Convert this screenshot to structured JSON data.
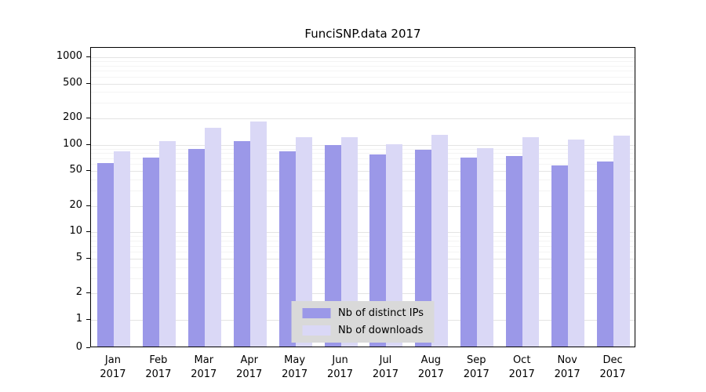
{
  "colors": {
    "grid_major": "#e4e4e4",
    "grid_minor": "#f4f4f4",
    "axis": "#000000",
    "legend_bg": "#d9d9d9",
    "background": "#ffffff"
  },
  "chart_data": {
    "type": "bar",
    "title": "FunciSNP.data 2017",
    "scale": "log",
    "grid": "on",
    "legend_position": "bottom-center",
    "categories": [
      "Jan",
      "Feb",
      "Mar",
      "Apr",
      "May",
      "Jun",
      "Jul",
      "Aug",
      "Sep",
      "Oct",
      "Nov",
      "Dec"
    ],
    "year": "2017",
    "yticks": [
      1000,
      500,
      200,
      100,
      50,
      20,
      10,
      5,
      2,
      1,
      0
    ],
    "ylim": [
      0,
      1000
    ],
    "series": [
      {
        "name": "Nb of distinct IPs",
        "color": "#9b98e8",
        "values": [
          62,
          72,
          90,
          110,
          85,
          100,
          78,
          88,
          72,
          74,
          58,
          65
        ]
      },
      {
        "name": "Nb of downloads",
        "color": "#dad8f6",
        "values": [
          85,
          110,
          155,
          185,
          122,
          122,
          102,
          130,
          92,
          122,
          115,
          128
        ]
      }
    ]
  }
}
